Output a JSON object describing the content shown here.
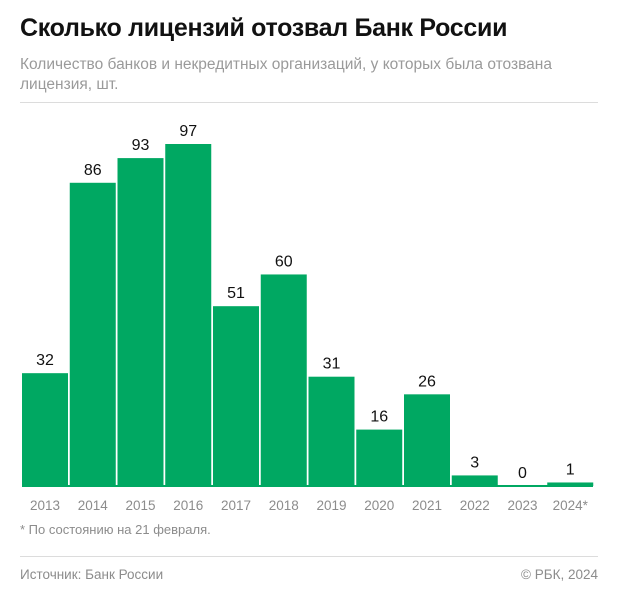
{
  "header": {
    "title": "Сколько лицензий отозвал Банк России",
    "subtitle": "Количество банков и некредитных организаций, у которых была отозвана лицензия, шт."
  },
  "footer": {
    "note": "* По состоянию на 21 февраля.",
    "source": "Источник: Банк России",
    "copyright": "© РБК, 2024"
  },
  "colors": {
    "bar": "#00a862",
    "baseline": "#00a862"
  },
  "chart_data": {
    "type": "bar",
    "categories": [
      "2013",
      "2014",
      "2015",
      "2016",
      "2017",
      "2018",
      "2019",
      "2020",
      "2021",
      "2022",
      "2023",
      "2024*"
    ],
    "values": [
      32,
      86,
      93,
      97,
      51,
      60,
      31,
      16,
      26,
      3,
      0,
      1
    ],
    "title": "Сколько лицензий отозвал Банк России",
    "xlabel": "",
    "ylabel": "",
    "ylim": [
      0,
      97
    ],
    "grid": false,
    "legend": "none",
    "data_labels": true
  }
}
